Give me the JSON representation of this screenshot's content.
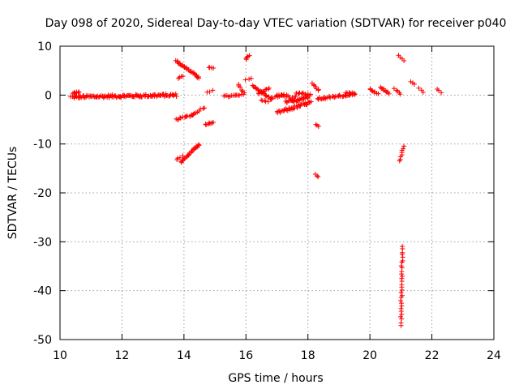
{
  "chart_data": {
    "type": "scatter",
    "title": "Day 098 of 2020, Sidereal Day-to-day VTEC variation (SDTVAR) for receiver p040",
    "xlabel": "GPS time / hours",
    "ylabel": "SDTVAR / TECUs",
    "xlim": [
      10,
      24
    ],
    "ylim": [
      -50,
      10
    ],
    "xticks": [
      10,
      12,
      14,
      16,
      18,
      20,
      22,
      24
    ],
    "yticks": [
      -50,
      -40,
      -30,
      -20,
      -10,
      0,
      10
    ],
    "grid": true,
    "marker": "+",
    "color": "#ff0000",
    "series": [
      {
        "name": "SDTVAR",
        "segments": [
          {
            "x": [
              10.35,
              13.75
            ],
            "y": [
              -0.4,
              0.0
            ],
            "n": 120,
            "jitter": 0.6
          },
          {
            "x": [
              10.4,
              10.6
            ],
            "y": [
              0.4,
              0.6
            ],
            "n": 8,
            "jitter": 0.3
          },
          {
            "x": [
              13.75,
              14.5
            ],
            "y": [
              7.0,
              3.5
            ],
            "n": 30,
            "jitter": 0.3
          },
          {
            "x": [
              13.8,
              13.95
            ],
            "y": [
              3.5,
              3.8
            ],
            "n": 4,
            "jitter": 0.2
          },
          {
            "x": [
              14.8,
              14.95
            ],
            "y": [
              5.6,
              5.5
            ],
            "n": 4,
            "jitter": 0.2
          },
          {
            "x": [
              13.75,
              14.3
            ],
            "y": [
              -5.0,
              -4.0
            ],
            "n": 14,
            "jitter": 0.3
          },
          {
            "x": [
              14.3,
              14.65
            ],
            "y": [
              -4.0,
              -2.5
            ],
            "n": 8,
            "jitter": 0.3
          },
          {
            "x": [
              14.7,
              14.95
            ],
            "y": [
              -6.0,
              -5.5
            ],
            "n": 8,
            "jitter": 0.3
          },
          {
            "x": [
              14.75,
              14.95
            ],
            "y": [
              0.6,
              0.9
            ],
            "n": 3,
            "jitter": 0.2
          },
          {
            "x": [
              13.75,
              13.95
            ],
            "y": [
              -13.2,
              -12.5
            ],
            "n": 4,
            "jitter": 0.2
          },
          {
            "x": [
              13.9,
              14.5
            ],
            "y": [
              -13.7,
              -10.0
            ],
            "n": 24,
            "jitter": 0.3
          },
          {
            "x": [
              15.3,
              15.9
            ],
            "y": [
              -0.3,
              0.0
            ],
            "n": 14,
            "jitter": 0.4
          },
          {
            "x": [
              15.75,
              15.95
            ],
            "y": [
              2.2,
              0.5
            ],
            "n": 6,
            "jitter": 0.3
          },
          {
            "x": [
              16.0,
              16.12
            ],
            "y": [
              7.3,
              8.1
            ],
            "n": 5,
            "jitter": 0.2
          },
          {
            "x": [
              16.0,
              16.15
            ],
            "y": [
              3.2,
              3.4
            ],
            "n": 3,
            "jitter": 0.2
          },
          {
            "x": [
              16.2,
              16.8
            ],
            "y": [
              2.0,
              -0.8
            ],
            "n": 20,
            "jitter": 0.4
          },
          {
            "x": [
              16.4,
              16.75
            ],
            "y": [
              0.2,
              1.4
            ],
            "n": 10,
            "jitter": 0.3
          },
          {
            "x": [
              16.5,
              16.7
            ],
            "y": [
              -1.0,
              -1.4
            ],
            "n": 5,
            "jitter": 0.2
          },
          {
            "x": [
              16.8,
              17.3
            ],
            "y": [
              -0.5,
              0.0
            ],
            "n": 10,
            "jitter": 0.4
          },
          {
            "x": [
              17.0,
              18.1
            ],
            "y": [
              -3.6,
              -1.5
            ],
            "n": 40,
            "jitter": 0.6
          },
          {
            "x": [
              17.3,
              18.0
            ],
            "y": [
              -1.5,
              -0.4
            ],
            "n": 30,
            "jitter": 0.6
          },
          {
            "x": [
              17.6,
              18.1
            ],
            "y": [
              0.6,
              0.0
            ],
            "n": 14,
            "jitter": 0.4
          },
          {
            "x": [
              17.0,
              17.6
            ],
            "y": [
              0.0,
              -0.4
            ],
            "n": 12,
            "jitter": 0.3
          },
          {
            "x": [
              18.15,
              18.35
            ],
            "y": [
              2.4,
              1.0
            ],
            "n": 8,
            "jitter": 0.2
          },
          {
            "x": [
              18.25,
              18.35
            ],
            "y": [
              -6.0,
              -6.5
            ],
            "n": 3,
            "jitter": 0.2
          },
          {
            "x": [
              18.25,
              18.35
            ],
            "y": [
              -16.2,
              -16.7
            ],
            "n": 3,
            "jitter": 0.2
          },
          {
            "x": [
              18.3,
              19.5
            ],
            "y": [
              -0.8,
              0.2
            ],
            "n": 34,
            "jitter": 0.4
          },
          {
            "x": [
              19.2,
              19.5
            ],
            "y": [
              0.6,
              0.2
            ],
            "n": 8,
            "jitter": 0.3
          },
          {
            "x": [
              20.0,
              20.25
            ],
            "y": [
              1.2,
              0.2
            ],
            "n": 8,
            "jitter": 0.3
          },
          {
            "x": [
              20.35,
              20.6
            ],
            "y": [
              1.5,
              0.4
            ],
            "n": 10,
            "jitter": 0.3
          },
          {
            "x": [
              20.8,
              21.0
            ],
            "y": [
              1.2,
              0.3
            ],
            "n": 5,
            "jitter": 0.3
          },
          {
            "x": [
              20.9,
              21.1
            ],
            "y": [
              8.2,
              7.0
            ],
            "n": 4,
            "jitter": 0.2
          },
          {
            "x": [
              20.95,
              21.1
            ],
            "y": [
              -13.5,
              -10.5
            ],
            "n": 8,
            "jitter": 0.2
          },
          {
            "x": [
              21.0,
              21.05
            ],
            "y": [
              -47.0,
              -31.0
            ],
            "n": 30,
            "jitter": 0.3
          },
          {
            "x": [
              21.3,
              21.45
            ],
            "y": [
              2.8,
              2.2
            ],
            "n": 3,
            "jitter": 0.2
          },
          {
            "x": [
              21.6,
              21.7
            ],
            "y": [
              1.5,
              0.6
            ],
            "n": 3,
            "jitter": 0.2
          },
          {
            "x": [
              22.15,
              22.3
            ],
            "y": [
              1.3,
              0.6
            ],
            "n": 3,
            "jitter": 0.2
          }
        ]
      }
    ]
  }
}
